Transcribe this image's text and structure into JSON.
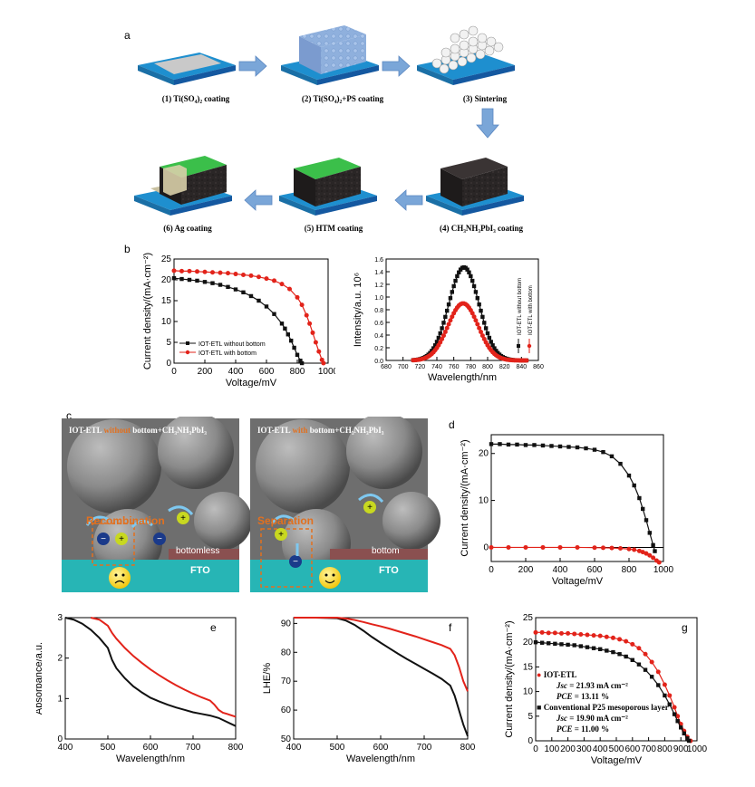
{
  "panel_labels": {
    "a": "a",
    "b": "b",
    "c": "c",
    "d": "d",
    "e": "e",
    "f": "f",
    "g": "g"
  },
  "fabrication_steps": [
    {
      "label": "(1) Ti(SO₄)₂ coating"
    },
    {
      "label": "(2) Ti(SO₄)₂+PS coating"
    },
    {
      "label": "(3) Sintering"
    },
    {
      "label": "(4) CH₃NH₃PbI₃ coating"
    },
    {
      "label": "(5) HTM coating"
    },
    {
      "label": "(6) Ag coating"
    }
  ],
  "schematic_c": {
    "left": {
      "title_a": "IOT-ETL ",
      "title_highlight": "without",
      "title_b": " bottom+CH₃NH₃PbI₃",
      "process": "Recombination",
      "layer": "bottomless",
      "substrate": "FTO"
    },
    "right": {
      "title_a": "IOT-ETL ",
      "title_highlight": "with",
      "title_b": " bottom+CH₃NH₃PbI₃",
      "process": "Separation",
      "layer": "bottom",
      "substrate": "FTO"
    },
    "colors": {
      "background": "#6f6f6f",
      "fto": "#27b5b5",
      "bottom_layer": "#8a5050",
      "highlight": "#e2701f",
      "box": "#e2701f"
    }
  },
  "chart_data": [
    {
      "id": "b1",
      "type": "line",
      "xlabel": "Voltage/mV",
      "ylabel": "Current density/(mA·cm⁻²)",
      "xlim": [
        0,
        1000
      ],
      "ylim": [
        0,
        25
      ],
      "xticks": [
        0,
        200,
        400,
        600,
        800,
        1000
      ],
      "yticks": [
        0,
        5,
        10,
        15,
        20,
        25
      ],
      "legend": "bottom-left",
      "series": [
        {
          "name": "IOT-ETL without bottom",
          "color": "#111111",
          "marker": "square",
          "x": [
            0,
            50,
            100,
            150,
            200,
            250,
            300,
            350,
            400,
            450,
            500,
            550,
            600,
            650,
            700,
            720,
            740,
            760,
            780,
            800,
            820,
            830
          ],
          "y": [
            20.4,
            20.2,
            20.0,
            19.8,
            19.5,
            19.2,
            18.8,
            18.3,
            17.7,
            17.0,
            16.1,
            15.0,
            13.6,
            11.8,
            9.5,
            8.3,
            6.9,
            5.4,
            3.7,
            2.0,
            0.6,
            0
          ]
        },
        {
          "name": "IOT-ETL with bottom",
          "color": "#e2231a",
          "marker": "circle",
          "x": [
            0,
            50,
            100,
            150,
            200,
            250,
            300,
            350,
            400,
            450,
            500,
            550,
            600,
            650,
            700,
            750,
            800,
            830,
            860,
            880,
            900,
            920,
            940,
            960,
            970
          ],
          "y": [
            22.2,
            22.1,
            22.1,
            22.0,
            21.9,
            21.8,
            21.7,
            21.6,
            21.4,
            21.2,
            21.0,
            20.7,
            20.3,
            19.8,
            19.0,
            17.8,
            15.8,
            14.0,
            11.5,
            9.5,
            7.3,
            5.0,
            2.8,
            0.8,
            0
          ]
        }
      ]
    },
    {
      "id": "b2",
      "type": "line",
      "xlabel": "Wavelength/nm",
      "ylabel": "Intensity/a.u. 10⁶",
      "xlim": [
        680,
        860
      ],
      "ylim": [
        0,
        1.6
      ],
      "xticks": [
        680,
        700,
        720,
        740,
        760,
        780,
        800,
        820,
        840,
        860
      ],
      "yticks": [
        0,
        0.2,
        0.4,
        0.6,
        0.8,
        1.0,
        1.2,
        1.4,
        1.6
      ],
      "legend": "right-vertical",
      "series": [
        {
          "name": "IOT-ETL without bottom",
          "color": "#111111",
          "marker": "square",
          "peak_x": 772,
          "peak_y": 1.47,
          "fwhm": 42,
          "x_range": [
            712,
            846
          ]
        },
        {
          "name": "IOT-ETL with bottom",
          "color": "#e2231a",
          "marker": "circle",
          "peak_x": 771,
          "peak_y": 0.9,
          "fwhm": 42,
          "x_range": [
            712,
            846
          ]
        }
      ]
    },
    {
      "id": "d",
      "type": "line",
      "xlabel": "Voltage/mV",
      "ylabel": "Current density/(mA·cm⁻²)",
      "xlim": [
        0,
        1000
      ],
      "ylim": [
        -3,
        24
      ],
      "xticks": [
        0,
        200,
        400,
        600,
        800,
        1000
      ],
      "yticks": [
        0,
        10,
        20
      ],
      "series": [
        {
          "color": "#111111",
          "marker": "square",
          "x": [
            0,
            50,
            100,
            150,
            200,
            250,
            300,
            350,
            400,
            450,
            500,
            550,
            600,
            650,
            700,
            750,
            800,
            830,
            860,
            880,
            900,
            920,
            940,
            950
          ],
          "y": [
            22.0,
            22.0,
            21.9,
            21.9,
            21.8,
            21.8,
            21.7,
            21.6,
            21.5,
            21.4,
            21.3,
            21.1,
            20.8,
            20.3,
            19.4,
            17.8,
            15.3,
            13.2,
            10.5,
            8.2,
            5.8,
            3.1,
            0.5,
            -0.8
          ]
        },
        {
          "color": "#e2231a",
          "marker": "circle",
          "x": [
            0,
            100,
            200,
            300,
            400,
            500,
            600,
            650,
            700,
            750,
            800,
            830,
            860,
            880,
            900,
            920,
            940,
            960,
            975
          ],
          "y": [
            0,
            0,
            0,
            0,
            0,
            0,
            -0.05,
            -0.08,
            -0.12,
            -0.2,
            -0.35,
            -0.5,
            -0.75,
            -1.0,
            -1.3,
            -1.7,
            -2.2,
            -2.8,
            -3.2
          ]
        }
      ]
    },
    {
      "id": "e",
      "type": "line",
      "xlabel": "Wavelength/nm",
      "ylabel": "Absorbance/a.u.",
      "xlim": [
        400,
        800
      ],
      "ylim": [
        0,
        3
      ],
      "xticks": [
        400,
        500,
        600,
        700,
        800
      ],
      "yticks": [
        0,
        1,
        2,
        3
      ],
      "series": [
        {
          "color": "#111111",
          "x": [
            400,
            420,
            440,
            460,
            480,
            500,
            510,
            520,
            540,
            560,
            580,
            600,
            620,
            640,
            660,
            680,
            700,
            720,
            740,
            760,
            780,
            800
          ],
          "y": [
            3.0,
            2.95,
            2.85,
            2.7,
            2.5,
            2.25,
            1.95,
            1.75,
            1.5,
            1.3,
            1.15,
            1.02,
            0.93,
            0.85,
            0.78,
            0.72,
            0.66,
            0.62,
            0.58,
            0.52,
            0.42,
            0.32
          ]
        },
        {
          "color": "#e2231a",
          "x": [
            460,
            480,
            500,
            510,
            520,
            540,
            560,
            580,
            600,
            620,
            640,
            660,
            680,
            700,
            720,
            740,
            750,
            760,
            770,
            780,
            800
          ],
          "y": [
            3.0,
            2.95,
            2.8,
            2.62,
            2.48,
            2.25,
            2.05,
            1.88,
            1.72,
            1.58,
            1.45,
            1.33,
            1.22,
            1.12,
            1.03,
            0.95,
            0.85,
            0.72,
            0.65,
            0.62,
            0.55
          ]
        }
      ]
    },
    {
      "id": "f",
      "type": "line",
      "xlabel": "Wavelength/nm",
      "ylabel": "LHE/%",
      "xlim": [
        400,
        800
      ],
      "ylim": [
        50,
        92
      ],
      "xticks": [
        400,
        500,
        600,
        700,
        800
      ],
      "yticks": [
        50,
        60,
        70,
        80,
        90
      ],
      "series": [
        {
          "color": "#111111",
          "x": [
            400,
            450,
            500,
            520,
            540,
            560,
            580,
            600,
            620,
            640,
            660,
            680,
            700,
            720,
            740,
            760,
            770,
            780,
            790,
            800
          ],
          "y": [
            92,
            92,
            91.8,
            91,
            89.5,
            87.5,
            85.3,
            83.3,
            81.4,
            79.5,
            77.7,
            76,
            74.3,
            72.6,
            70.8,
            68.5,
            65,
            60,
            55,
            51
          ]
        },
        {
          "color": "#e2231a",
          "x": [
            400,
            450,
            500,
            520,
            540,
            560,
            580,
            600,
            620,
            640,
            660,
            680,
            700,
            720,
            740,
            760,
            770,
            780,
            790,
            800
          ],
          "y": [
            92,
            92,
            92,
            91.7,
            91.2,
            90.5,
            89.7,
            89,
            88.2,
            87.3,
            86.4,
            85.5,
            84.5,
            83.5,
            82.5,
            81.2,
            79,
            75,
            70,
            66.5
          ]
        }
      ]
    },
    {
      "id": "g",
      "type": "line",
      "xlabel": "Voltage/mV",
      "ylabel": "Current density/(mA·cm⁻²)",
      "xlim": [
        0,
        1000
      ],
      "ylim": [
        0,
        25
      ],
      "xticks": [
        0,
        100,
        200,
        300,
        400,
        500,
        600,
        700,
        800,
        900,
        1000
      ],
      "yticks": [
        0,
        5,
        10,
        15,
        20,
        25
      ],
      "legend_text": [
        {
          "name": "IOT-ETL",
          "color": "#e2231a",
          "marker": "circle",
          "jsc_label": "Jsc",
          "jsc": " = 21.93 mA cm⁻²",
          "pce_label": "PCE",
          "pce": " = 13.11 %"
        },
        {
          "name": "Conventional P25 mesoporous layer",
          "color": "#111111",
          "marker": "square",
          "jsc_label": "Jsc",
          "jsc": " = 19.90 mA cm⁻²",
          "pce_label": "PCE",
          "pce": " = 11.00 %"
        }
      ],
      "series": [
        {
          "color": "#e2231a",
          "marker": "circle",
          "x": [
            0,
            40,
            80,
            120,
            160,
            200,
            240,
            280,
            320,
            360,
            400,
            440,
            480,
            520,
            560,
            600,
            640,
            680,
            720,
            760,
            800,
            830,
            860,
            880,
            900,
            920,
            940,
            960
          ],
          "y": [
            22.0,
            22.0,
            21.9,
            21.9,
            21.8,
            21.8,
            21.7,
            21.6,
            21.5,
            21.4,
            21.3,
            21.1,
            20.9,
            20.6,
            20.2,
            19.6,
            18.8,
            17.6,
            16.0,
            14.0,
            11.4,
            9.2,
            6.8,
            5.0,
            3.4,
            2.0,
            0.8,
            0
          ]
        },
        {
          "color": "#111111",
          "marker": "square",
          "x": [
            0,
            40,
            80,
            120,
            160,
            200,
            240,
            280,
            320,
            360,
            400,
            440,
            480,
            520,
            560,
            600,
            640,
            680,
            720,
            760,
            800,
            830,
            860,
            880,
            900,
            920,
            940,
            950
          ],
          "y": [
            20.0,
            19.9,
            19.8,
            19.7,
            19.6,
            19.5,
            19.4,
            19.2,
            19.0,
            18.8,
            18.6,
            18.3,
            18.0,
            17.6,
            17.1,
            16.4,
            15.5,
            14.4,
            13.0,
            11.3,
            9.2,
            7.4,
            5.4,
            4.0,
            2.7,
            1.5,
            0.5,
            0
          ]
        }
      ]
    }
  ]
}
